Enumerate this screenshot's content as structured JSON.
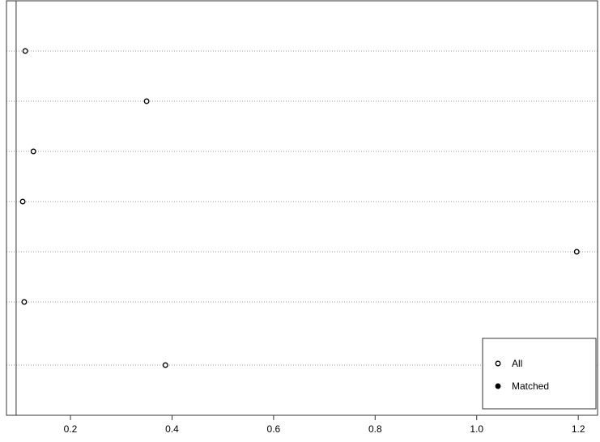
{
  "chart_data": {
    "type": "dotplot",
    "categories": [
      null,
      null,
      null,
      null,
      null,
      null,
      null
    ],
    "series": [
      {
        "name": "All",
        "marker": "open",
        "color": "#000000",
        "values": [
          0.111,
          0.35,
          0.127,
          0.106,
          1.197,
          0.109,
          0.387
        ]
      },
      {
        "name": "Matched",
        "marker": "filled",
        "color": "#000000",
        "values": [
          null,
          null,
          null,
          null,
          null,
          null,
          null
        ]
      }
    ],
    "xlim": [
      0.074,
      1.238
    ],
    "xticks": [
      0.2,
      0.4,
      0.6,
      0.8,
      {
        "value": 1,
        "label": "1.0"
      },
      1.2
    ],
    "reference_line": 0.093,
    "grid": true,
    "legend": "bottom-right"
  }
}
